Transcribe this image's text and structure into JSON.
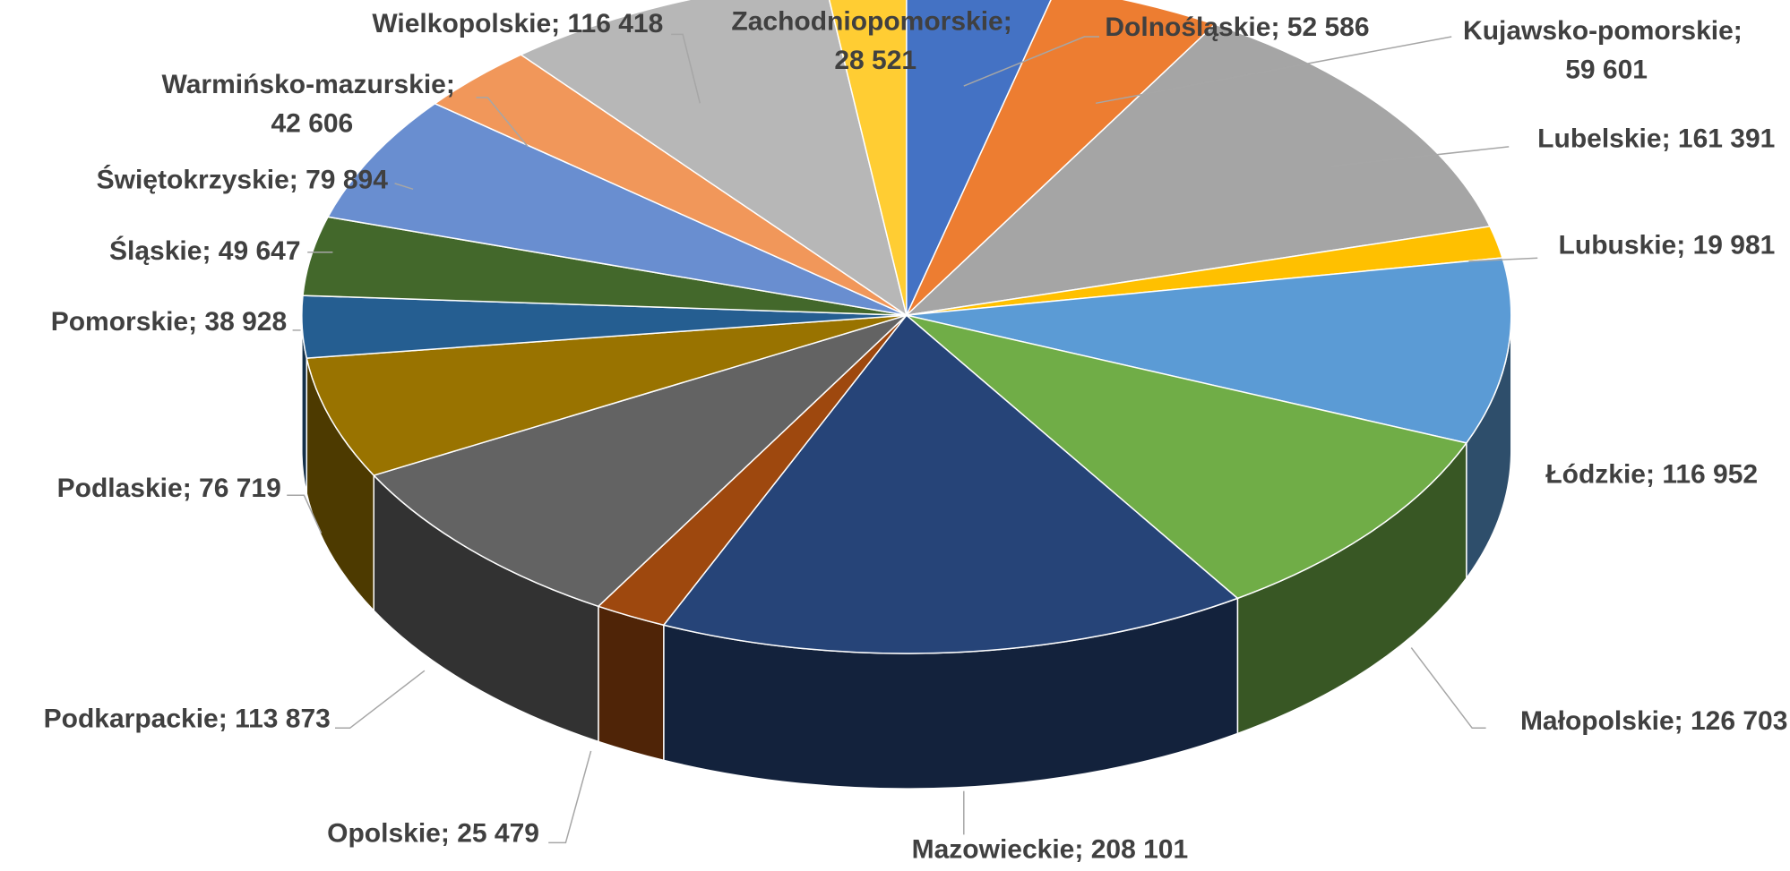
{
  "chart_data": {
    "type": "pie",
    "categories": [
      "Dolnośląskie",
      "Kujawsko-pomorskie",
      "Lubelskie",
      "Lubuskie",
      "Łódzkie",
      "Małopolskie",
      "Mazowieckie",
      "Opolskie",
      "Podkarpackie",
      "Podlaskie",
      "Pomorskie",
      "Śląskie",
      "Świętokrzyskie",
      "Warmińsko-mazurskie",
      "Wielkopolskie",
      "Zachodniopomorskie"
    ],
    "values": [
      52586,
      59601,
      161391,
      19981,
      116952,
      126703,
      208101,
      25479,
      113873,
      76719,
      38928,
      49647,
      79894,
      42606,
      116418,
      28521
    ],
    "value_labels": [
      "52 586",
      "59 601",
      "161 391",
      "19 981",
      "116 952",
      "126 703",
      "208 101",
      "25 479",
      "113 873",
      "76 719",
      "38 928",
      "49 647",
      "79 894",
      "42 606",
      "116 418",
      "28 521"
    ],
    "label_separator": "; ",
    "colors": [
      "#4472c4",
      "#ed7d31",
      "#a5a5a5",
      "#ffc000",
      "#5b9bd5",
      "#70ad47",
      "#264478",
      "#9e480e",
      "#636363",
      "#997300",
      "#255e91",
      "#43682b",
      "#698ed0",
      "#f1975a",
      "#b7b7b7",
      "#ffcd33"
    ]
  }
}
